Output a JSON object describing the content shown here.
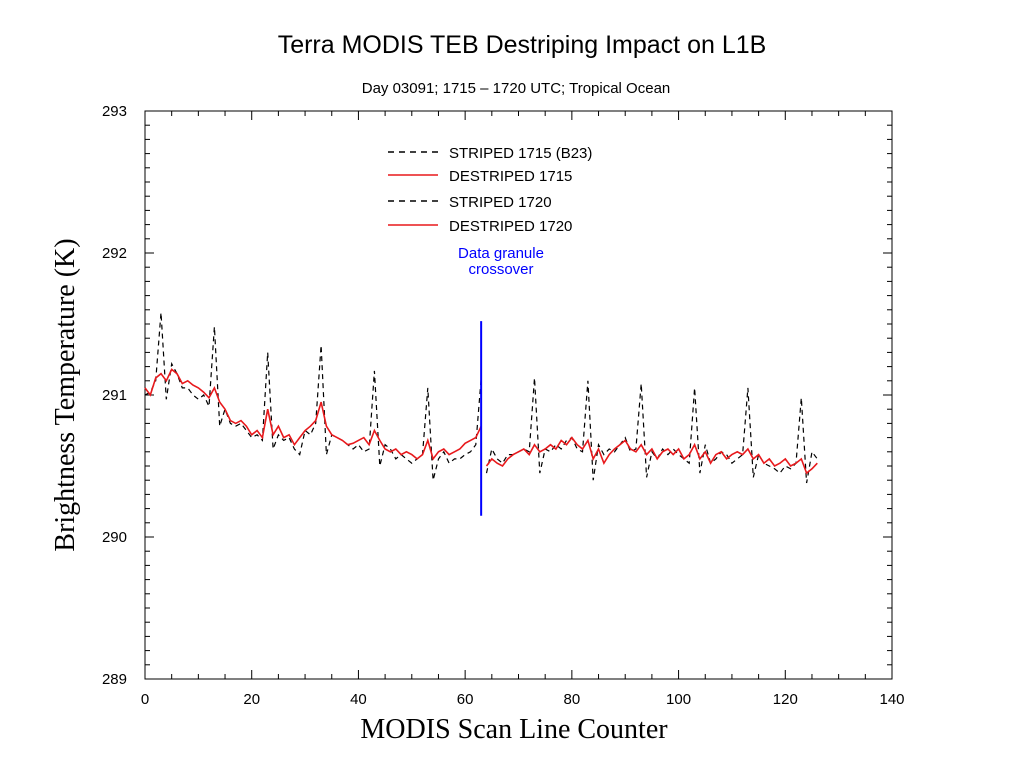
{
  "chart_data": {
    "type": "line",
    "title": "Terra MODIS TEB Destriping Impact on L1B",
    "subtitle": "Day 03091; 1715 – 1720 UTC; Tropical Ocean",
    "xlabel": "MODIS Scan Line Counter",
    "ylabel": "Brightness Temperature (K)",
    "xlim": [
      0,
      140
    ],
    "ylim": [
      289,
      293
    ],
    "x_ticks": [
      0,
      20,
      40,
      60,
      80,
      100,
      120,
      140
    ],
    "y_ticks": [
      289,
      290,
      291,
      292,
      293
    ],
    "legend_position": "top-center",
    "grid": false,
    "colors": {
      "striped": "#000000",
      "destriped": "#e8191c",
      "annotation": "#0000ff"
    },
    "series": [
      {
        "name": "STRIPED 1715 (B23)",
        "style": "dashed",
        "x": [
          0,
          1,
          2,
          3,
          4,
          5,
          6,
          7,
          8,
          9,
          10,
          11,
          12,
          13,
          14,
          15,
          16,
          17,
          18,
          19,
          20,
          21,
          22,
          23,
          24,
          25,
          26,
          27,
          28,
          29,
          30,
          31,
          32,
          33,
          34,
          35,
          36,
          37,
          38,
          39,
          40,
          41,
          42,
          43,
          44,
          45,
          46,
          47,
          48,
          49,
          50,
          51,
          52,
          53,
          54,
          55,
          56,
          57,
          58,
          59,
          60,
          61,
          62,
          63
        ],
        "values": [
          291.0,
          291.02,
          291.1,
          291.58,
          290.97,
          291.22,
          291.15,
          291.05,
          291.05,
          291.0,
          290.97,
          291.0,
          290.92,
          291.48,
          290.78,
          290.9,
          290.8,
          290.78,
          290.8,
          290.75,
          290.7,
          290.72,
          290.68,
          291.3,
          290.62,
          290.72,
          290.68,
          290.7,
          290.62,
          290.58,
          290.75,
          290.72,
          290.8,
          291.35,
          290.58,
          290.72,
          290.7,
          290.68,
          290.65,
          290.62,
          290.65,
          290.6,
          290.62,
          291.17,
          290.5,
          290.65,
          290.62,
          290.55,
          290.58,
          290.55,
          290.52,
          290.55,
          290.58,
          291.05,
          290.4,
          290.55,
          290.6,
          290.52,
          290.55,
          290.55,
          290.58,
          290.6,
          290.65,
          291.12
        ]
      },
      {
        "name": "DESTRIPED 1715",
        "style": "solid",
        "x": [
          0,
          1,
          2,
          3,
          4,
          5,
          6,
          7,
          8,
          9,
          10,
          11,
          12,
          13,
          14,
          15,
          16,
          17,
          18,
          19,
          20,
          21,
          22,
          23,
          24,
          25,
          26,
          27,
          28,
          29,
          30,
          31,
          32,
          33,
          34,
          35,
          36,
          37,
          38,
          39,
          40,
          41,
          42,
          43,
          44,
          45,
          46,
          47,
          48,
          49,
          50,
          51,
          52,
          53,
          54,
          55,
          56,
          57,
          58,
          59,
          60,
          61,
          62,
          63
        ],
        "values": [
          291.05,
          291.0,
          291.12,
          291.15,
          291.1,
          291.18,
          291.15,
          291.08,
          291.1,
          291.07,
          291.05,
          291.02,
          290.98,
          291.05,
          290.95,
          290.9,
          290.82,
          290.8,
          290.82,
          290.78,
          290.72,
          290.75,
          290.7,
          290.9,
          290.72,
          290.78,
          290.7,
          290.72,
          290.65,
          290.7,
          290.75,
          290.78,
          290.82,
          290.95,
          290.78,
          290.72,
          290.7,
          290.68,
          290.65,
          290.66,
          290.68,
          290.7,
          290.65,
          290.75,
          290.68,
          290.62,
          290.6,
          290.62,
          290.58,
          290.6,
          290.58,
          290.55,
          290.58,
          290.68,
          290.55,
          290.6,
          290.62,
          290.58,
          290.6,
          290.62,
          290.66,
          290.68,
          290.7,
          290.78
        ]
      },
      {
        "name": "STRIPED 1720",
        "style": "dashed",
        "x": [
          64,
          65,
          66,
          67,
          68,
          69,
          70,
          71,
          72,
          73,
          74,
          75,
          76,
          77,
          78,
          79,
          80,
          81,
          82,
          83,
          84,
          85,
          86,
          87,
          88,
          89,
          90,
          91,
          92,
          93,
          94,
          95,
          96,
          97,
          98,
          99,
          100,
          101,
          102,
          103,
          104,
          105,
          106,
          107,
          108,
          109,
          110,
          111,
          112,
          113,
          114,
          115,
          116,
          117,
          118,
          119,
          120,
          121,
          122,
          123,
          124,
          125,
          126
        ],
        "values": [
          290.45,
          290.62,
          290.55,
          290.52,
          290.58,
          290.58,
          290.6,
          290.62,
          290.6,
          291.12,
          290.45,
          290.62,
          290.6,
          290.65,
          290.62,
          290.68,
          290.7,
          290.62,
          290.6,
          291.1,
          290.4,
          290.65,
          290.58,
          290.62,
          290.6,
          290.65,
          290.7,
          290.6,
          290.62,
          291.08,
          290.42,
          290.6,
          290.55,
          290.62,
          290.58,
          290.62,
          290.58,
          290.55,
          290.52,
          291.05,
          290.45,
          290.65,
          290.52,
          290.55,
          290.6,
          290.58,
          290.52,
          290.55,
          290.58,
          291.05,
          290.42,
          290.58,
          290.52,
          290.5,
          290.48,
          290.45,
          290.5,
          290.48,
          290.52,
          290.98,
          290.38,
          290.6,
          290.55
        ]
      },
      {
        "name": "DESTRIPED 1720",
        "style": "solid",
        "x": [
          64,
          65,
          66,
          67,
          68,
          69,
          70,
          71,
          72,
          73,
          74,
          75,
          76,
          77,
          78,
          79,
          80,
          81,
          82,
          83,
          84,
          85,
          86,
          87,
          88,
          89,
          90,
          91,
          92,
          93,
          94,
          95,
          96,
          97,
          98,
          99,
          100,
          101,
          102,
          103,
          104,
          105,
          106,
          107,
          108,
          109,
          110,
          111,
          112,
          113,
          114,
          115,
          116,
          117,
          118,
          119,
          120,
          121,
          122,
          123,
          124,
          125,
          126
        ],
        "values": [
          290.5,
          290.55,
          290.52,
          290.5,
          290.55,
          290.58,
          290.6,
          290.62,
          290.58,
          290.65,
          290.6,
          290.62,
          290.65,
          290.62,
          290.68,
          290.65,
          290.7,
          290.65,
          290.62,
          290.68,
          290.55,
          290.62,
          290.52,
          290.58,
          290.62,
          290.65,
          290.68,
          290.62,
          290.6,
          290.65,
          290.58,
          290.62,
          290.55,
          290.6,
          290.62,
          290.58,
          290.62,
          290.55,
          290.58,
          290.65,
          290.55,
          290.6,
          290.52,
          290.58,
          290.6,
          290.55,
          290.58,
          290.6,
          290.58,
          290.62,
          290.55,
          290.58,
          290.52,
          290.55,
          290.5,
          290.52,
          290.55,
          290.5,
          290.52,
          290.55,
          290.45,
          290.48,
          290.52
        ]
      }
    ],
    "annotations": [
      {
        "text_lines": [
          "Data granule",
          "crossover"
        ],
        "x": 63,
        "y_range": [
          290.15,
          291.52
        ]
      }
    ]
  }
}
